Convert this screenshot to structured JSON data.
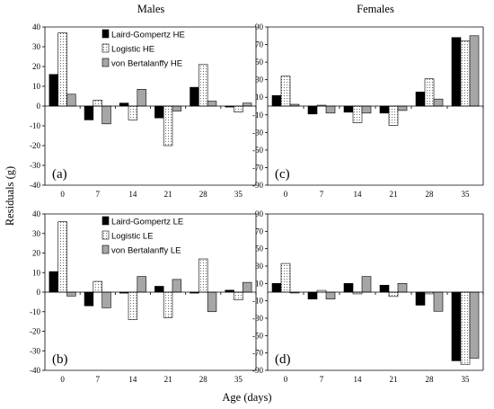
{
  "figure": {
    "col_titles": [
      "Males",
      "Females"
    ],
    "ylabel": "Residuals (g)",
    "xlabel": "Age (days)"
  },
  "colors": {
    "Laird-Gompertz": "#000000",
    "Logistic": "#ffffff",
    "von Bertalanffy": "#a6a6a6"
  },
  "chart_data": [
    {
      "id": "a",
      "label": "(a)",
      "type": "bar",
      "categories": [
        "0",
        "7",
        "14",
        "21",
        "28",
        "35"
      ],
      "ylim": [
        -40,
        40
      ],
      "yticks": [
        -40,
        -30,
        -20,
        -10,
        0,
        10,
        20,
        30,
        40
      ],
      "legend": "top-left",
      "series": [
        {
          "name": "Laird-Gompertz HE",
          "values": [
            16,
            -7,
            1.5,
            -6,
            9.5,
            -0.5
          ]
        },
        {
          "name": "Logistic HE",
          "values": [
            37,
            3,
            -7,
            -20,
            21,
            -3
          ]
        },
        {
          "name": "von Bertalanffy HE",
          "values": [
            6,
            -9,
            8.5,
            -2.5,
            2.5,
            1.5
          ]
        }
      ]
    },
    {
      "id": "c",
      "label": "(c)",
      "type": "bar",
      "categories": [
        "0",
        "7",
        "14",
        "21",
        "28",
        "35"
      ],
      "ylim": [
        -90,
        90
      ],
      "yticks": [
        -90,
        -70,
        -50,
        -30,
        -10,
        10,
        30,
        50,
        70,
        90
      ],
      "series": [
        {
          "name": "Laird-Gompertz HE",
          "values": [
            12,
            -9,
            -7,
            -8,
            16,
            78
          ]
        },
        {
          "name": "Logistic HE",
          "values": [
            34,
            1,
            -19,
            -22,
            31,
            74
          ]
        },
        {
          "name": "von Bertalanffy HE",
          "values": [
            2,
            -8,
            -8,
            -5,
            8,
            80
          ]
        }
      ]
    },
    {
      "id": "b",
      "label": "(b)",
      "type": "bar",
      "categories": [
        "0",
        "7",
        "14",
        "21",
        "28",
        "35"
      ],
      "ylim": [
        -40,
        40
      ],
      "yticks": [
        -40,
        -30,
        -20,
        -10,
        0,
        10,
        20,
        30,
        40
      ],
      "legend": "top-left",
      "series": [
        {
          "name": "Laird-Gompertz LE",
          "values": [
            10.5,
            -7,
            -0.5,
            3,
            -0.5,
            1
          ]
        },
        {
          "name": "Logistic  LE",
          "values": [
            36,
            5.5,
            -14,
            -13,
            17,
            -4
          ]
        },
        {
          "name": "von Bertalanffy LE",
          "values": [
            -2,
            -8,
            8,
            6.5,
            -10,
            5
          ]
        }
      ]
    },
    {
      "id": "d",
      "label": "(d)",
      "type": "bar",
      "categories": [
        "0",
        "7",
        "14",
        "21",
        "28",
        "35"
      ],
      "ylim": [
        -90,
        90
      ],
      "yticks": [
        -90,
        -70,
        -50,
        -30,
        -10,
        10,
        30,
        50,
        70,
        90
      ],
      "series": [
        {
          "name": "Laird-Gompertz LE",
          "values": [
            10,
            -8,
            10,
            8,
            -15,
            -79
          ]
        },
        {
          "name": "Logistic  LE",
          "values": [
            33,
            2,
            -2,
            -5,
            -2,
            -83
          ]
        },
        {
          "name": "von Bertalanffy LE",
          "values": [
            -1,
            -8,
            18,
            10,
            -22,
            -76
          ]
        }
      ]
    }
  ]
}
